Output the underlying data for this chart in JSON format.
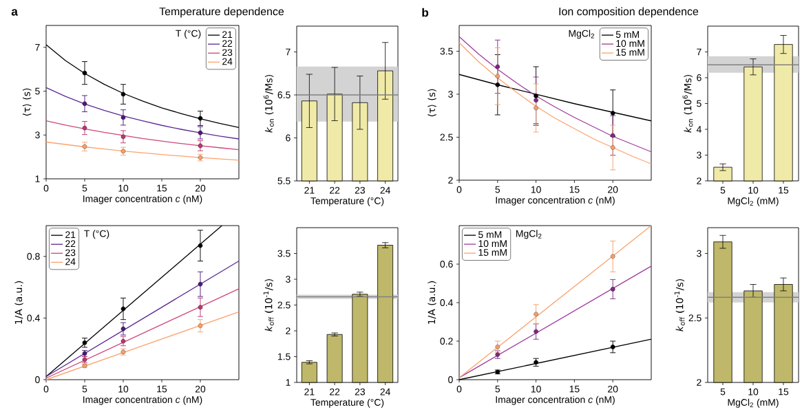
{
  "chart_data": [
    {
      "type": "line",
      "xlabel": "Imager concentration *c* (nM)",
      "ylabel": "⟨τ⟩ (s)",
      "xlim": [
        0,
        25
      ],
      "ylim": [
        1,
        8
      ],
      "xticks": [
        0,
        5,
        10,
        15,
        20
      ],
      "yticks": [
        1,
        3,
        5,
        7
      ],
      "legend": "top right",
      "legend_title": "T (°C)",
      "annotations": [
        "a",
        "Temperature dependence"
      ],
      "series": [
        {
          "name": "21",
          "type": "line",
          "color": "#000000",
          "x": [
            0,
            2.5,
            5,
            7.5,
            10,
            12.5,
            15,
            17.5,
            20,
            22.5,
            25
          ],
          "values": [
            7.12,
            6.4,
            5.81,
            5.32,
            4.9,
            4.55,
            4.24,
            3.98,
            3.74,
            3.53,
            3.34
          ]
        },
        {
          "name": "22",
          "type": "line",
          "color": "#5b2a96",
          "x": [
            0,
            2.5,
            5,
            7.5,
            10,
            12.5,
            15,
            17.5,
            20,
            22.5,
            25
          ],
          "values": [
            5.16,
            4.76,
            4.42,
            4.13,
            3.87,
            3.65,
            3.44,
            3.26,
            3.1,
            2.95,
            2.82
          ]
        },
        {
          "name": "23",
          "type": "line",
          "color": "#d0457a",
          "x": [
            0,
            2.5,
            5,
            7.5,
            10,
            12.5,
            15,
            17.5,
            20,
            22.5,
            25
          ],
          "values": [
            3.65,
            3.45,
            3.28,
            3.12,
            2.98,
            2.84,
            2.72,
            2.61,
            2.51,
            2.42,
            2.33
          ]
        },
        {
          "name": "24",
          "type": "line",
          "color": "#fba36d",
          "x": [
            0,
            2.5,
            5,
            7.5,
            10,
            12.5,
            15,
            17.5,
            20,
            22.5,
            25
          ],
          "values": [
            2.68,
            2.57,
            2.46,
            2.36,
            2.27,
            2.19,
            2.11,
            2.04,
            1.97,
            1.91,
            1.85
          ]
        },
        {
          "type": "scatter",
          "marker": "circle",
          "color": "#000000",
          "x": [
            5,
            10,
            20
          ],
          "values": [
            5.83,
            4.86,
            3.76
          ],
          "errors": [
            0.52,
            0.45,
            0.33
          ]
        },
        {
          "type": "scatter",
          "marker": "circle",
          "color": "#4b1a7a",
          "x": [
            5,
            10,
            20
          ],
          "values": [
            4.43,
            3.8,
            3.1
          ],
          "errors": [
            0.37,
            0.35,
            0.28
          ]
        },
        {
          "type": "scatter",
          "marker": "circle",
          "color": "#b8386d",
          "x": [
            5,
            10,
            20
          ],
          "values": [
            3.32,
            2.92,
            2.51
          ],
          "errors": [
            0.3,
            0.28,
            0.23
          ]
        },
        {
          "type": "scatter",
          "marker": "circle",
          "color": "#f4a06e",
          "x": [
            5,
            10,
            20
          ],
          "values": [
            2.47,
            2.26,
            1.97
          ],
          "errors": [
            0.2,
            0.18,
            0.15
          ]
        }
      ]
    },
    {
      "type": "bar",
      "categories": [
        "21",
        "22",
        "23",
        "24"
      ],
      "values": [
        6.43,
        6.51,
        6.41,
        6.78
      ],
      "errors": [
        0.31,
        0.31,
        0.31,
        0.33
      ],
      "color": "#f0eaa8",
      "xlabel": "Temperature (°C)",
      "ylabel": "*k*$_{on}$ (10$^{6}$/Ms)",
      "ylim": [
        5.5,
        7.3
      ],
      "yticks": [
        5.5,
        6,
        6.5,
        7
      ],
      "ref_lines": [
        {
          "axis": "y",
          "value": 6.5,
          "color": "#808080"
        }
      ],
      "bands": [
        {
          "axis": "y",
          "from": 6.19,
          "to": 6.83,
          "color": "#d3d3d3"
        }
      ]
    },
    {
      "type": "line",
      "xlabel": "Imager concentration *c* (nM)",
      "ylabel": "⟨τ⟩ (s)",
      "xlim": [
        0,
        25
      ],
      "ylim": [
        2,
        3.8
      ],
      "xticks": [
        0,
        5,
        10,
        15,
        20
      ],
      "yticks": [
        2,
        2.5,
        3,
        3.5
      ],
      "legend": "top right",
      "legend_title": "MgCl$_{2}$",
      "annotations": [
        "b",
        "Ion composition dependence"
      ],
      "series": [
        {
          "name": "5 mM",
          "type": "line",
          "color": "#000000",
          "x": [
            0,
            5,
            10,
            15,
            20,
            25
          ],
          "values": [
            3.23,
            3.11,
            3.0,
            2.89,
            2.79,
            2.69
          ]
        },
        {
          "name": "10 mM",
          "type": "line",
          "color": "#a03c9c",
          "x": [
            0,
            2.5,
            5,
            7.5,
            10,
            12.5,
            15,
            17.5,
            20,
            22.5,
            25
          ],
          "values": [
            3.67,
            3.47,
            3.29,
            3.13,
            2.98,
            2.85,
            2.73,
            2.62,
            2.51,
            2.42,
            2.33
          ]
        },
        {
          "name": "15 mM",
          "type": "line",
          "color": "#fba36d",
          "x": [
            0,
            2.5,
            5,
            7.5,
            10,
            12.5,
            15,
            17.5,
            20,
            22.5,
            25
          ],
          "values": [
            3.6,
            3.38,
            3.19,
            3.02,
            2.86,
            2.72,
            2.6,
            2.48,
            2.38,
            2.28,
            2.19
          ]
        },
        {
          "type": "scatter",
          "marker": "circle",
          "color": "#000000",
          "x": [
            5,
            10,
            20
          ],
          "values": [
            3.11,
            2.98,
            2.78
          ],
          "errors": [
            0.35,
            0.34,
            0.27
          ]
        },
        {
          "type": "scatter",
          "marker": "circle",
          "color": "#7d2a80",
          "x": [
            5,
            10,
            20
          ],
          "values": [
            3.32,
            2.93,
            2.52
          ],
          "errors": [
            0.31,
            0.27,
            0.23
          ]
        },
        {
          "type": "scatter",
          "marker": "circle",
          "color": "#f0a070",
          "x": [
            5,
            10,
            20
          ],
          "values": [
            3.21,
            2.84,
            2.38
          ],
          "errors": [
            0.33,
            0.28,
            0.26
          ]
        }
      ]
    },
    {
      "type": "bar",
      "categories": [
        "5",
        "10",
        "15"
      ],
      "values": [
        2.53,
        6.42,
        7.29
      ],
      "errors": [
        0.13,
        0.31,
        0.35
      ],
      "color": "#f0eaa8",
      "xlabel": "MgCl$_{2}$ (mM)",
      "ylabel": "*k*$_{on}$ (10$^{6}$/Ms)",
      "ylim": [
        2,
        8
      ],
      "yticks": [
        2,
        3,
        4,
        5,
        6,
        7
      ],
      "ref_lines": [
        {
          "axis": "y",
          "value": 6.5,
          "color": "#808080"
        }
      ],
      "bands": [
        {
          "axis": "y",
          "from": 6.19,
          "to": 6.83,
          "color": "#d3d3d3"
        }
      ]
    },
    {
      "type": "line",
      "xlabel": "Imager concentration *c* (nM)",
      "ylabel": "1/A (a.u.)",
      "xlim": [
        0,
        25
      ],
      "ylim": [
        0,
        1
      ],
      "xticks": [
        0,
        5,
        10,
        15,
        20
      ],
      "yticks": [
        0,
        0.4,
        0.8
      ],
      "legend": "top left",
      "legend_title": "T (°C)",
      "series": [
        {
          "name": "21",
          "type": "line",
          "color": "#000000",
          "x": [
            0,
            22.8
          ],
          "values": [
            0.02,
            1.0
          ]
        },
        {
          "name": "22",
          "type": "line",
          "color": "#5b2a96",
          "x": [
            0,
            25
          ],
          "values": [
            0.02,
            0.77
          ]
        },
        {
          "name": "23",
          "type": "line",
          "color": "#d0457a",
          "x": [
            0,
            25
          ],
          "values": [
            0.01,
            0.59
          ]
        },
        {
          "name": "24",
          "type": "line",
          "color": "#fba36d",
          "x": [
            0,
            25
          ],
          "values": [
            0.0,
            0.44
          ]
        },
        {
          "type": "scatter",
          "marker": "circle",
          "color": "#000000",
          "x": [
            5,
            10,
            20
          ],
          "values": [
            0.24,
            0.46,
            0.87
          ],
          "errors": [
            0.03,
            0.07,
            0.1
          ]
        },
        {
          "type": "scatter",
          "marker": "circle",
          "color": "#4b1a7a",
          "x": [
            5,
            10,
            20
          ],
          "values": [
            0.17,
            0.33,
            0.62
          ],
          "errors": [
            0.02,
            0.04,
            0.08
          ]
        },
        {
          "type": "scatter",
          "marker": "circle",
          "color": "#b8386d",
          "x": [
            5,
            10,
            20
          ],
          "values": [
            0.13,
            0.25,
            0.47
          ],
          "errors": [
            0.02,
            0.03,
            0.06
          ]
        },
        {
          "type": "scatter",
          "marker": "circle",
          "color": "#f4a06e",
          "x": [
            5,
            10,
            20
          ],
          "values": [
            0.09,
            0.18,
            0.35
          ],
          "errors": [
            0.01,
            0.02,
            0.04
          ]
        }
      ]
    },
    {
      "type": "bar",
      "categories": [
        "21",
        "22",
        "23",
        "24"
      ],
      "values": [
        1.39,
        1.93,
        2.71,
        3.66
      ],
      "errors": [
        0.03,
        0.03,
        0.04,
        0.05
      ],
      "color": "#bfb86a",
      "xlabel": "Temperature (°C)",
      "ylabel": "*k*$_{off}$ (10$^{-1}$/s)",
      "ylim": [
        1,
        4
      ],
      "yticks": [
        1,
        1.5,
        2,
        2.5,
        3,
        3.5
      ],
      "ref_lines": [
        {
          "axis": "y",
          "value": 2.66,
          "color": "#808080"
        }
      ],
      "bands": [
        {
          "axis": "y",
          "from": 2.62,
          "to": 2.7,
          "color": "#d3d3d3"
        }
      ]
    },
    {
      "type": "line",
      "xlabel": "Imager concentration *c* (nM)",
      "ylabel": "1/A (a.u.)",
      "xlim": [
        0,
        25
      ],
      "ylim": [
        0,
        0.8
      ],
      "xticks": [
        0,
        5,
        10,
        15,
        20
      ],
      "yticks": [
        0,
        0.2,
        0.4,
        0.6
      ],
      "legend": "top left",
      "legend_title": "MgCl$_{2}$",
      "series": [
        {
          "name": "5 mM",
          "type": "line",
          "color": "#000000",
          "x": [
            0,
            25
          ],
          "values": [
            0.0,
            0.21
          ]
        },
        {
          "name": "10 mM",
          "type": "line",
          "color": "#a03c9c",
          "x": [
            0,
            25
          ],
          "values": [
            0.01,
            0.59
          ]
        },
        {
          "name": "15 mM",
          "type": "line",
          "color": "#fba36d",
          "x": [
            0,
            25
          ],
          "values": [
            0.01,
            0.8
          ]
        },
        {
          "type": "scatter",
          "marker": "circle",
          "color": "#000000",
          "x": [
            5,
            10,
            20
          ],
          "values": [
            0.04,
            0.09,
            0.17
          ],
          "errors": [
            0.01,
            0.02,
            0.03
          ]
        },
        {
          "type": "scatter",
          "marker": "circle",
          "color": "#7d2a80",
          "x": [
            5,
            10,
            20
          ],
          "values": [
            0.13,
            0.25,
            0.47
          ],
          "errors": [
            0.02,
            0.04,
            0.05
          ]
        },
        {
          "type": "scatter",
          "marker": "circle",
          "color": "#f0a070",
          "x": [
            5,
            10,
            20
          ],
          "values": [
            0.17,
            0.34,
            0.64
          ],
          "errors": [
            0.03,
            0.05,
            0.08
          ]
        }
      ]
    },
    {
      "type": "bar",
      "categories": [
        "5",
        "10",
        "15"
      ],
      "values": [
        3.09,
        2.71,
        2.76
      ],
      "errors": [
        0.05,
        0.05,
        0.05
      ],
      "color": "#bfb86a",
      "xlabel": "MgCl$_{2}$ (mM)",
      "ylabel": "*k*$_{off}$ (10$^{-1}$/s)",
      "ylim": [
        2,
        3.2
      ],
      "yticks": [
        2,
        2.5,
        3
      ],
      "ref_lines": [
        {
          "axis": "y",
          "value": 2.66,
          "color": "#808080"
        }
      ],
      "bands": [
        {
          "axis": "y",
          "from": 2.62,
          "to": 2.7,
          "color": "#d3d3d3"
        }
      ]
    }
  ]
}
